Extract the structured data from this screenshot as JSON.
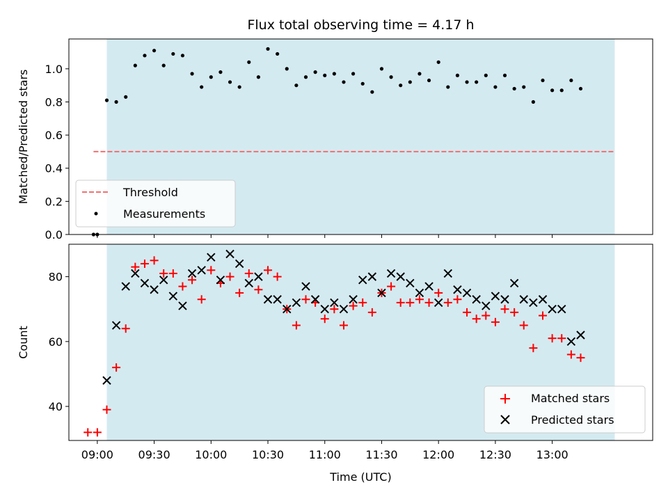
{
  "chart_data": [
    {
      "type": "scatter",
      "title": "Flux total observing time = 4.17 h",
      "ylabel": "Matched/Predicted stars",
      "xlabel": "",
      "ylim": [
        0,
        1.18
      ],
      "x_unit": "time (UTC)",
      "yticks": [
        "0.0",
        "0.2",
        "0.4",
        "0.6",
        "0.8",
        "1.0"
      ],
      "shaded_interval": {
        "start": "09:05",
        "end": "13:33",
        "color": "#d4eaf1"
      },
      "legend_position": "lower-left",
      "grid": false,
      "series": [
        {
          "name": "Threshold",
          "kind": "dashed-line",
          "color": "#f07070",
          "x": [
            "08:58",
            "13:33"
          ],
          "y": [
            0.5,
            0.5
          ]
        },
        {
          "name": "Measurements",
          "kind": "dot",
          "color": "#000000",
          "x": [
            "08:58",
            "09:00",
            "09:05",
            "09:10",
            "09:15",
            "09:20",
            "09:25",
            "09:30",
            "09:35",
            "09:40",
            "09:45",
            "09:50",
            "09:55",
            "10:00",
            "10:05",
            "10:10",
            "10:15",
            "10:20",
            "10:25",
            "10:30",
            "10:35",
            "10:40",
            "10:45",
            "10:50",
            "10:55",
            "11:00",
            "11:05",
            "11:10",
            "11:15",
            "11:20",
            "11:25",
            "11:30",
            "11:35",
            "11:40",
            "11:45",
            "11:50",
            "11:55",
            "12:00",
            "12:05",
            "12:10",
            "12:15",
            "12:20",
            "12:25",
            "12:30",
            "12:35",
            "12:40",
            "12:45",
            "12:50",
            "12:55",
            "13:00",
            "13:05",
            "13:10",
            "13:15"
          ],
          "y": [
            0.0,
            0.0,
            0.81,
            0.8,
            0.83,
            1.02,
            1.08,
            1.11,
            1.02,
            1.09,
            1.08,
            0.97,
            0.89,
            0.95,
            0.98,
            0.92,
            0.89,
            1.04,
            0.95,
            1.12,
            1.09,
            1.0,
            0.9,
            0.95,
            0.98,
            0.96,
            0.97,
            0.92,
            0.97,
            0.91,
            0.86,
            1.0,
            0.95,
            0.9,
            0.92,
            0.97,
            0.93,
            1.04,
            0.89,
            0.96,
            0.92,
            0.92,
            0.96,
            0.89,
            0.96,
            0.88,
            0.89,
            0.8,
            0.93,
            0.87,
            0.87,
            0.93,
            0.88
          ]
        }
      ]
    },
    {
      "type": "scatter",
      "title": "",
      "ylabel": "Count",
      "xlabel": "Time (UTC)",
      "ylim": [
        29.5,
        90
      ],
      "yticks": [
        "40",
        "60",
        "80"
      ],
      "xticks": [
        "09:00",
        "09:30",
        "10:00",
        "10:30",
        "11:00",
        "11:30",
        "12:00",
        "12:30",
        "13:00"
      ],
      "shaded_interval": {
        "start": "09:05",
        "end": "13:33",
        "color": "#d4eaf1"
      },
      "legend_position": "lower-right",
      "grid": false,
      "series": [
        {
          "name": "Matched stars",
          "kind": "plus",
          "color": "#ff0000",
          "x": [
            "08:55",
            "09:00",
            "09:05",
            "09:10",
            "09:15",
            "09:20",
            "09:25",
            "09:30",
            "09:35",
            "09:40",
            "09:45",
            "09:50",
            "09:55",
            "10:00",
            "10:05",
            "10:10",
            "10:15",
            "10:20",
            "10:25",
            "10:30",
            "10:35",
            "10:40",
            "10:45",
            "10:50",
            "10:55",
            "11:00",
            "11:05",
            "11:10",
            "11:15",
            "11:20",
            "11:25",
            "11:30",
            "11:35",
            "11:40",
            "11:45",
            "11:50",
            "11:55",
            "12:00",
            "12:05",
            "12:10",
            "12:15",
            "12:20",
            "12:25",
            "12:30",
            "12:35",
            "12:40",
            "12:45",
            "12:50",
            "12:55",
            "13:00",
            "13:05",
            "13:10",
            "13:15"
          ],
          "y": [
            32,
            32,
            39,
            52,
            64,
            83,
            84,
            85,
            81,
            81,
            77,
            79,
            73,
            82,
            78,
            80,
            75,
            81,
            76,
            82,
            80,
            70,
            65,
            73,
            72,
            67,
            70,
            65,
            71,
            72,
            69,
            75,
            77,
            72,
            72,
            73,
            72,
            75,
            72,
            73,
            69,
            67,
            68,
            66,
            70,
            69,
            65,
            58,
            68,
            61,
            61,
            56,
            55
          ]
        },
        {
          "name": "Predicted stars",
          "kind": "cross",
          "color": "#000000",
          "x": [
            "09:05",
            "09:10",
            "09:15",
            "09:20",
            "09:25",
            "09:30",
            "09:35",
            "09:40",
            "09:45",
            "09:50",
            "09:55",
            "10:00",
            "10:05",
            "10:10",
            "10:15",
            "10:20",
            "10:25",
            "10:30",
            "10:35",
            "10:40",
            "10:45",
            "10:50",
            "10:55",
            "11:00",
            "11:05",
            "11:10",
            "11:15",
            "11:20",
            "11:25",
            "11:30",
            "11:35",
            "11:40",
            "11:45",
            "11:50",
            "11:55",
            "12:00",
            "12:05",
            "12:10",
            "12:15",
            "12:20",
            "12:25",
            "12:30",
            "12:35",
            "12:40",
            "12:45",
            "12:50",
            "12:55",
            "13:00",
            "13:05",
            "13:10",
            "13:15"
          ],
          "y": [
            48,
            65,
            77,
            81,
            78,
            76,
            79,
            74,
            71,
            81,
            82,
            86,
            79,
            87,
            84,
            78,
            80,
            73,
            73,
            70,
            72,
            77,
            73,
            70,
            72,
            70,
            73,
            79,
            80,
            75,
            81,
            80,
            78,
            75,
            77,
            72,
            81,
            76,
            75,
            73,
            71,
            74,
            73,
            78,
            73,
            72,
            73,
            70,
            70,
            60,
            62
          ]
        }
      ]
    }
  ]
}
